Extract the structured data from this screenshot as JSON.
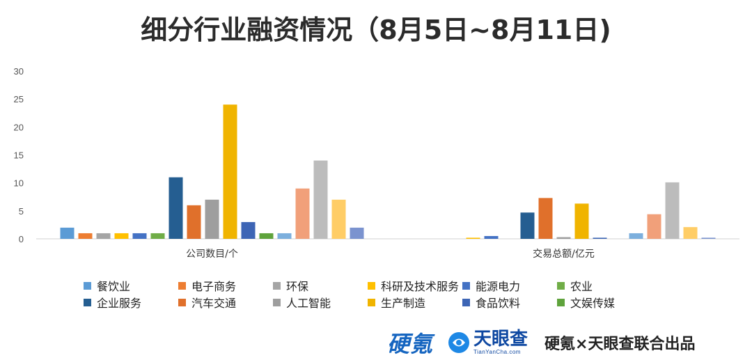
{
  "page": {
    "title": "细分行业融资情况（8月5日~8月11日)"
  },
  "chart_data": {
    "type": "bar",
    "title": "细分行业融资情况（8月5日~8月11日)",
    "categories": [
      "公司数目/个",
      "交易总额/亿元"
    ],
    "ylim": [
      0,
      30
    ],
    "yticks": [
      0,
      5,
      10,
      15,
      20,
      25,
      30
    ],
    "grid": false,
    "legend_position": "bottom",
    "series": [
      {
        "name": "餐饮业",
        "color": "#5b9bd5",
        "values": [
          2,
          0
        ]
      },
      {
        "name": "电子商务",
        "color": "#ed7d31",
        "values": [
          1,
          0
        ]
      },
      {
        "name": "环保",
        "color": "#a5a5a5",
        "values": [
          1,
          0
        ]
      },
      {
        "name": "科研及技术服务",
        "color": "#ffc000",
        "values": [
          1,
          0.2
        ]
      },
      {
        "name": "能源电力",
        "color": "#4472c4",
        "values": [
          1,
          0.5
        ]
      },
      {
        "name": "农业",
        "color": "#70ad47",
        "values": [
          1,
          0
        ]
      },
      {
        "name": "企业服务",
        "color": "#255e91",
        "values": [
          11,
          4.7
        ]
      },
      {
        "name": "汽车交通",
        "color": "#e0702b",
        "values": [
          6,
          7.3
        ]
      },
      {
        "name": "人工智能",
        "color": "#9e9e9e",
        "values": [
          7,
          0.3
        ]
      },
      {
        "name": "生产制造",
        "color": "#f0b400",
        "values": [
          24,
          6.3
        ]
      },
      {
        "name": "食品饮料",
        "color": "#3d65b5",
        "values": [
          3,
          0.2
        ]
      },
      {
        "name": "文娱传媒",
        "color": "#5fa33c",
        "values": [
          1,
          0
        ]
      },
      {
        "name": "",
        "color": "#7cafdd",
        "values": [
          1,
          1.0
        ]
      },
      {
        "name": "",
        "color": "#f1a07a",
        "values": [
          9,
          4.4
        ]
      },
      {
        "name": "",
        "color": "#bcbcbc",
        "values": [
          14,
          10.1
        ]
      },
      {
        "name": "",
        "color": "#ffcd66",
        "values": [
          7,
          2.1
        ]
      },
      {
        "name": "",
        "color": "#7b93cf",
        "values": [
          2,
          0.2
        ]
      }
    ]
  },
  "footer": {
    "logo1_text": "硬氪",
    "logo2_name": "天眼查",
    "logo2_url": "TianYanCha.com",
    "joint_text": "硬氪×天眼查联合出品"
  }
}
